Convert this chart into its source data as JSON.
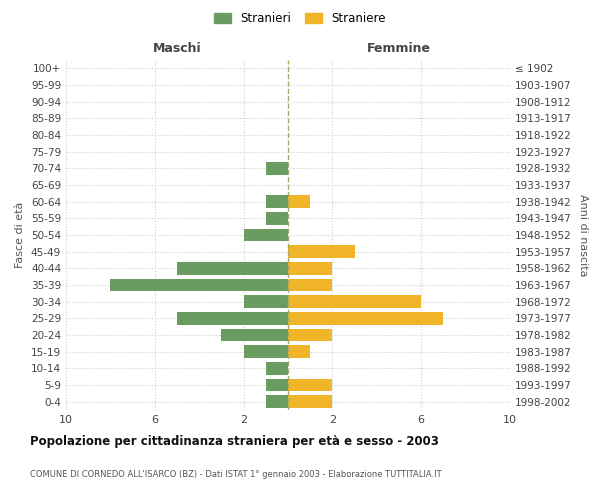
{
  "age_groups": [
    "100+",
    "95-99",
    "90-94",
    "85-89",
    "80-84",
    "75-79",
    "70-74",
    "65-69",
    "60-64",
    "55-59",
    "50-54",
    "45-49",
    "40-44",
    "35-39",
    "30-34",
    "25-29",
    "20-24",
    "15-19",
    "10-14",
    "5-9",
    "0-4"
  ],
  "birth_years": [
    "≤ 1902",
    "1903-1907",
    "1908-1912",
    "1913-1917",
    "1918-1922",
    "1923-1927",
    "1928-1932",
    "1933-1937",
    "1938-1942",
    "1943-1947",
    "1948-1952",
    "1953-1957",
    "1958-1962",
    "1963-1967",
    "1968-1972",
    "1973-1977",
    "1978-1982",
    "1983-1987",
    "1988-1992",
    "1993-1997",
    "1998-2002"
  ],
  "maschi": [
    0,
    0,
    0,
    0,
    0,
    0,
    1,
    0,
    1,
    1,
    2,
    0,
    5,
    8,
    2,
    5,
    3,
    2,
    1,
    1,
    1
  ],
  "femmine": [
    0,
    0,
    0,
    0,
    0,
    0,
    0,
    0,
    1,
    0,
    0,
    3,
    2,
    2,
    6,
    7,
    2,
    1,
    0,
    2,
    2
  ],
  "maschi_color": "#6a9c5f",
  "femmine_color": "#f0b429",
  "title": "Popolazione per cittadinanza straniera per età e sesso - 2003",
  "subtitle": "COMUNE DI CORNEDO ALL'ISARCO (BZ) - Dati ISTAT 1° gennaio 2003 - Elaborazione TUTTITALIA.IT",
  "xlabel_left": "Maschi",
  "xlabel_right": "Femmine",
  "ylabel_left": "Fasce di età",
  "ylabel_right": "Anni di nascita",
  "legend_stranieri": "Stranieri",
  "legend_straniere": "Straniere",
  "xlim": 10,
  "background_color": "#ffffff",
  "grid_color": "#cccccc"
}
